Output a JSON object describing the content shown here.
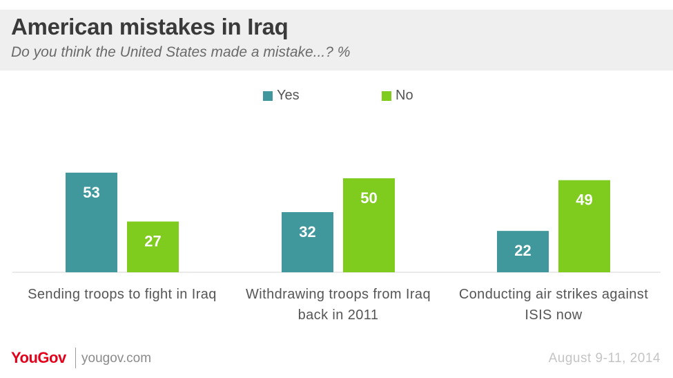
{
  "header": {
    "title": "American mistakes in Iraq",
    "subtitle": "Do you think the United States made a mistake...? %"
  },
  "footer": {
    "brand": "YouGov",
    "site": "yougov.com",
    "date": "August 9-11, 2014"
  },
  "colors": {
    "yes": "#40989c",
    "no": "#7fcb1e",
    "baseline": "#d6d6d6"
  },
  "chart_data": {
    "type": "bar",
    "title": "American mistakes in Iraq",
    "subtitle": "Do you think the United States made a mistake...? %",
    "categories": [
      [
        "Sending troops to fight in Iraq"
      ],
      [
        "Withdrawing troops from Iraq",
        "back in 2011"
      ],
      [
        "Conducting air strikes against",
        "ISIS now"
      ]
    ],
    "series": [
      {
        "name": "Yes",
        "values": [
          53,
          32,
          22
        ]
      },
      {
        "name": "No",
        "values": [
          27,
          50,
          49
        ]
      }
    ],
    "ylim": [
      0,
      60
    ],
    "legend": "top-center",
    "grid": false,
    "data_labels": true
  }
}
